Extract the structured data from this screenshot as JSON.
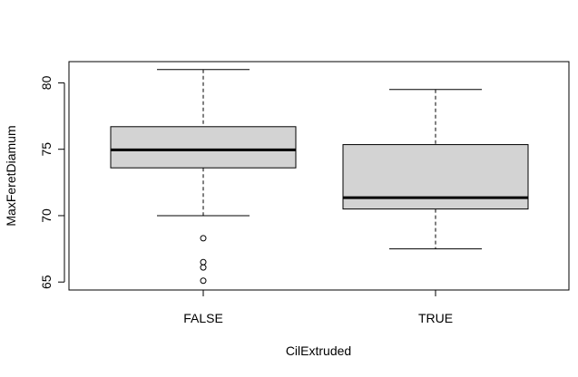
{
  "chart_data": {
    "type": "boxplot",
    "xlabel": "CilExtruded",
    "ylabel": "MaxFeretDiamum",
    "categories": [
      "FALSE",
      "TRUE"
    ],
    "yticks": [
      65,
      70,
      75,
      80
    ],
    "ylim": [
      64.4,
      81.6
    ],
    "boxes": [
      {
        "category": "FALSE",
        "whisker_low": 70.0,
        "q1": 73.6,
        "median": 74.95,
        "q3": 76.7,
        "whisker_high": 81.0,
        "outliers": [
          68.3,
          66.5,
          66.1,
          65.1
        ]
      },
      {
        "category": "TRUE",
        "whisker_low": 67.5,
        "q1": 70.5,
        "median": 71.35,
        "q3": 75.35,
        "whisker_high": 79.5,
        "outliers": []
      }
    ],
    "box_fill": "#d3d3d3",
    "grid": false,
    "legend": "none"
  }
}
